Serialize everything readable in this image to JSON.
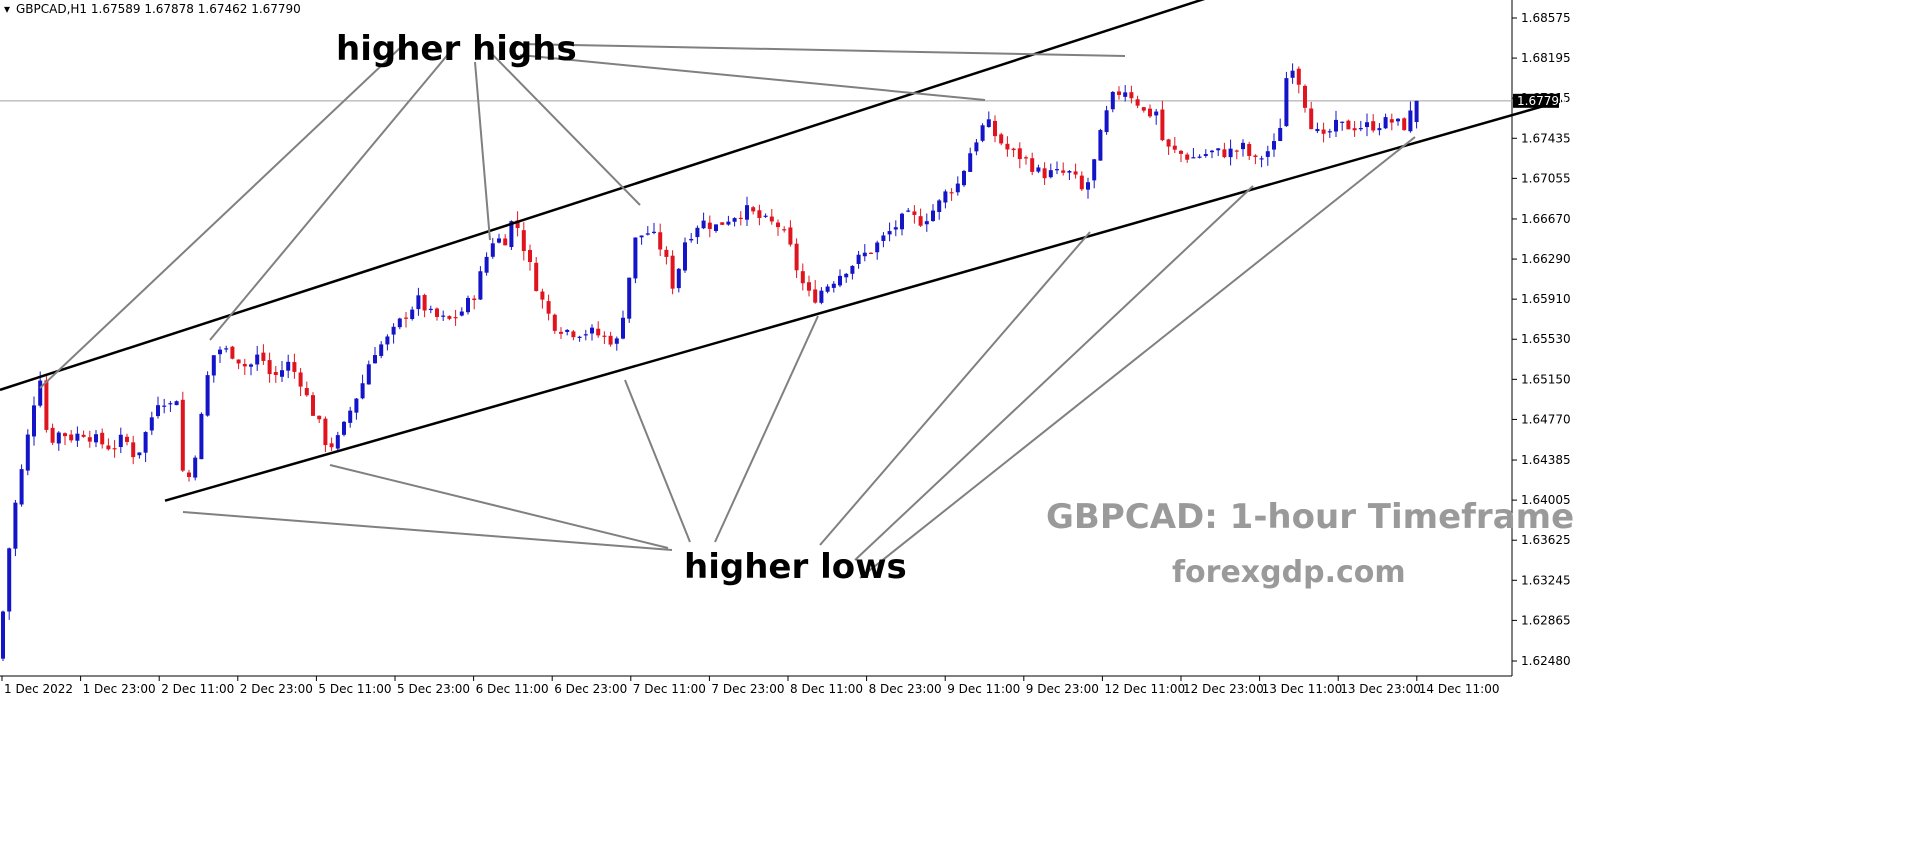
{
  "header": {
    "symbol_line": "GBPCAD,H1  1.67589 1.67878 1.67462 1.67790"
  },
  "annotations": {
    "higher_highs": "higher highs",
    "higher_lows": "higher lows",
    "watermark_title": "GBPCAD: 1-hour Timeframe",
    "watermark_site": "forexgdp.com"
  },
  "colors": {
    "bull": "#1515c8",
    "bear": "#e0141e",
    "channel": "#000000",
    "pointer": "#808080",
    "price_line": "#a0a0a0"
  },
  "current_price_label": "1.67790",
  "chart_data": {
    "type": "candlestick",
    "title": "GBPCAD,H1",
    "timeframe": "1-hour",
    "ylim": [
      1.621,
      1.69
    ],
    "y_ticks": [
      "1.68575",
      "1.68195",
      "1.67815",
      "1.67435",
      "1.67055",
      "1.66670",
      "1.66290",
      "1.65910",
      "1.65530",
      "1.65150",
      "1.64770",
      "1.64385",
      "1.64005",
      "1.63625",
      "1.63245",
      "1.62865",
      "1.62480"
    ],
    "x_ticks": [
      "1 Dec 2022",
      "1 Dec 23:00",
      "2 Dec 11:00",
      "2 Dec 23:00",
      "5 Dec 11:00",
      "5 Dec 23:00",
      "6 Dec 11:00",
      "6 Dec 23:00",
      "7 Dec 11:00",
      "7 Dec 23:00",
      "8 Dec 11:00",
      "8 Dec 23:00",
      "9 Dec 11:00",
      "9 Dec 23:00",
      "12 Dec 11:00",
      "12 Dec 23:00",
      "13 Dec 11:00",
      "13 Dec 23:00",
      "14 Dec 11:00"
    ],
    "last_price": 1.6779,
    "last_candle": {
      "open": 1.67589,
      "high": 1.67878,
      "low": 1.67462,
      "close": 1.6779
    },
    "channel": {
      "upper": [
        [
          0,
          1.6505
        ],
        [
          1300,
          1.6905
        ]
      ],
      "lower": [
        [
          165,
          1.64
        ],
        [
          1562,
          1.6779
        ]
      ]
    },
    "grid": false,
    "anchors_close": [
      [
        0,
        1.625
      ],
      [
        4,
        1.631
      ],
      [
        12,
        1.638
      ],
      [
        24,
        1.644
      ],
      [
        36,
        1.6505
      ],
      [
        40,
        1.652
      ],
      [
        48,
        1.6455
      ],
      [
        60,
        1.6465
      ],
      [
        72,
        1.646
      ],
      [
        84,
        1.6465
      ],
      [
        100,
        1.6455
      ],
      [
        112,
        1.645
      ],
      [
        124,
        1.646
      ],
      [
        136,
        1.644
      ],
      [
        148,
        1.647
      ],
      [
        160,
        1.65
      ],
      [
        170,
        1.649
      ],
      [
        178,
        1.65
      ],
      [
        184,
        1.641
      ],
      [
        192,
        1.643
      ],
      [
        200,
        1.647
      ],
      [
        208,
        1.652
      ],
      [
        216,
        1.6545
      ],
      [
        232,
        1.654
      ],
      [
        248,
        1.6525
      ],
      [
        260,
        1.654
      ],
      [
        272,
        1.6515
      ],
      [
        288,
        1.653
      ],
      [
        300,
        1.6515
      ],
      [
        310,
        1.649
      ],
      [
        320,
        1.647
      ],
      [
        328,
        1.645
      ],
      [
        340,
        1.646
      ],
      [
        352,
        1.649
      ],
      [
        362,
        1.651
      ],
      [
        372,
        1.654
      ],
      [
        390,
        1.6555
      ],
      [
        404,
        1.6575
      ],
      [
        418,
        1.659
      ],
      [
        432,
        1.6575
      ],
      [
        448,
        1.657
      ],
      [
        462,
        1.658
      ],
      [
        474,
        1.6595
      ],
      [
        486,
        1.663
      ],
      [
        494,
        1.665
      ],
      [
        504,
        1.6645
      ],
      [
        514,
        1.667
      ],
      [
        524,
        1.664
      ],
      [
        534,
        1.661
      ],
      [
        546,
        1.658
      ],
      [
        556,
        1.6565
      ],
      [
        572,
        1.656
      ],
      [
        590,
        1.656
      ],
      [
        604,
        1.6555
      ],
      [
        618,
        1.655
      ],
      [
        626,
        1.6595
      ],
      [
        636,
        1.665
      ],
      [
        650,
        1.6655
      ],
      [
        664,
        1.6635
      ],
      [
        674,
        1.66
      ],
      [
        684,
        1.6645
      ],
      [
        700,
        1.6665
      ],
      [
        716,
        1.666
      ],
      [
        732,
        1.667
      ],
      [
        748,
        1.6675
      ],
      [
        764,
        1.6665
      ],
      [
        780,
        1.666
      ],
      [
        790,
        1.664
      ],
      [
        800,
        1.661
      ],
      [
        812,
        1.659
      ],
      [
        822,
        1.66
      ],
      [
        834,
        1.661
      ],
      [
        846,
        1.662
      ],
      [
        860,
        1.663
      ],
      [
        874,
        1.664
      ],
      [
        890,
        1.6655
      ],
      [
        906,
        1.667
      ],
      [
        922,
        1.6665
      ],
      [
        938,
        1.668
      ],
      [
        948,
        1.6695
      ],
      [
        958,
        1.67
      ],
      [
        972,
        1.6735
      ],
      [
        986,
        1.676
      ],
      [
        996,
        1.6745
      ],
      [
        1010,
        1.673
      ],
      [
        1024,
        1.6725
      ],
      [
        1040,
        1.671
      ],
      [
        1056,
        1.671
      ],
      [
        1072,
        1.671
      ],
      [
        1084,
        1.669
      ],
      [
        1094,
        1.672
      ],
      [
        1104,
        1.676
      ],
      [
        1114,
        1.6785
      ],
      [
        1126,
        1.679
      ],
      [
        1136,
        1.678
      ],
      [
        1146,
        1.6765
      ],
      [
        1156,
        1.677
      ],
      [
        1164,
        1.6735
      ],
      [
        1176,
        1.673
      ],
      [
        1192,
        1.6725
      ],
      [
        1210,
        1.673
      ],
      [
        1228,
        1.673
      ],
      [
        1244,
        1.6735
      ],
      [
        1254,
        1.672
      ],
      [
        1266,
        1.673
      ],
      [
        1278,
        1.674
      ],
      [
        1286,
        1.68
      ],
      [
        1292,
        1.6815
      ],
      [
        1300,
        1.6795
      ],
      [
        1310,
        1.676
      ],
      [
        1322,
        1.674
      ],
      [
        1334,
        1.6755
      ],
      [
        1350,
        1.6755
      ],
      [
        1370,
        1.6755
      ],
      [
        1390,
        1.676
      ],
      [
        1404,
        1.6755
      ],
      [
        1418,
        1.6779
      ]
    ]
  }
}
